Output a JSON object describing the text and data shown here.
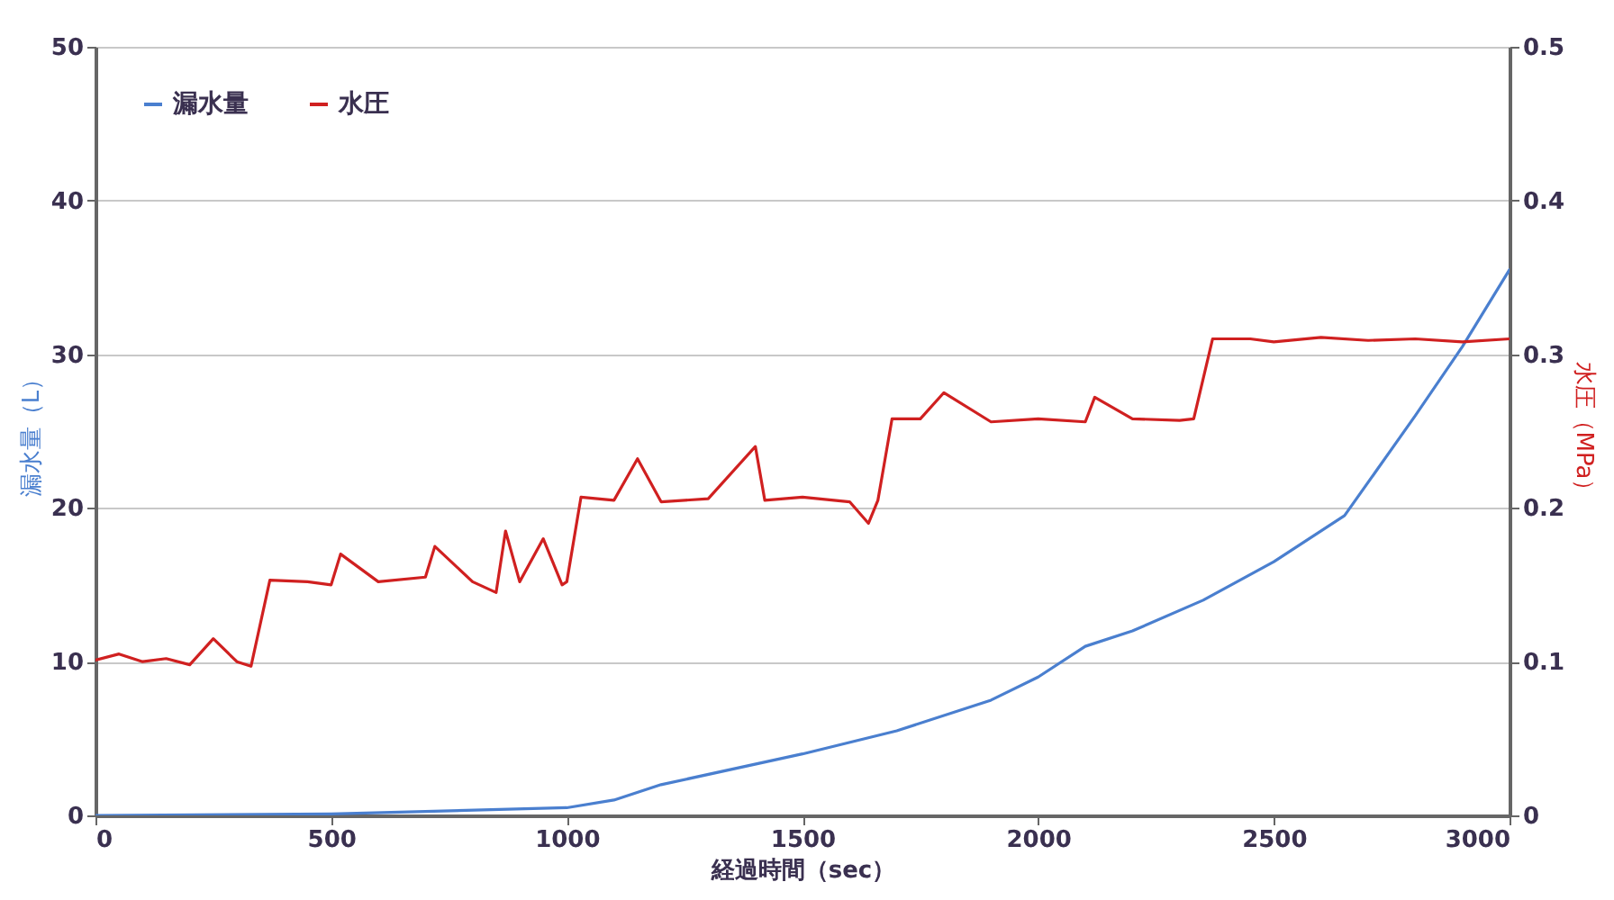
{
  "chart_data": {
    "type": "line",
    "xlabel": "経過時間（sec）",
    "ylabel": "漏水量（L）",
    "y2label": "水圧（MPa）",
    "xlim": [
      0,
      3000
    ],
    "xticks": [
      0,
      500,
      1000,
      1500,
      2000,
      2500,
      3000
    ],
    "ylim": [
      0,
      50
    ],
    "yticks": [
      0,
      10,
      20,
      30,
      40,
      50
    ],
    "y2lim": [
      0,
      0.5
    ],
    "y2ticks": [
      0,
      0.1,
      0.2,
      0.3,
      0.4,
      0.5
    ],
    "grid": "y",
    "legend": "top left",
    "marker": "none",
    "line_style": "solid",
    "series": [
      {
        "name": "漏水量",
        "color": "#4a7fcf",
        "x": [
          0,
          500,
          1000,
          1100,
          1200,
          1500,
          1700,
          1900,
          2000,
          2100,
          2200,
          2350,
          2500,
          2650,
          2800,
          2900,
          3000
        ],
        "values": [
          0,
          0.1,
          0.5,
          1,
          2,
          4,
          5.5,
          7.5,
          9,
          11,
          12,
          14,
          16.5,
          19.5,
          26,
          30.5,
          35.5
        ]
      },
      {
        "name": "水圧",
        "color": "#d02020",
        "axis": "y2",
        "x": [
          0,
          50,
          100,
          150,
          200,
          250,
          300,
          330,
          370,
          450,
          500,
          520,
          600,
          700,
          720,
          800,
          850,
          870,
          900,
          950,
          990,
          1000,
          1030,
          1100,
          1150,
          1200,
          1300,
          1400,
          1420,
          1500,
          1600,
          1640,
          1660,
          1690,
          1750,
          1800,
          1900,
          2000,
          2100,
          2120,
          2200,
          2300,
          2330,
          2370,
          2450,
          2500,
          2600,
          2700,
          2800,
          2900,
          3000
        ],
        "values": [
          0.101,
          0.105,
          0.1,
          0.102,
          0.098,
          0.115,
          0.1,
          0.097,
          0.153,
          0.152,
          0.15,
          0.17,
          0.152,
          0.155,
          0.175,
          0.152,
          0.145,
          0.185,
          0.152,
          0.18,
          0.15,
          0.152,
          0.207,
          0.205,
          0.232,
          0.204,
          0.206,
          0.24,
          0.205,
          0.207,
          0.204,
          0.19,
          0.205,
          0.258,
          0.258,
          0.275,
          0.256,
          0.258,
          0.256,
          0.272,
          0.258,
          0.257,
          0.258,
          0.31,
          0.31,
          0.308,
          0.311,
          0.309,
          0.31,
          0.308,
          0.31
        ]
      }
    ]
  }
}
